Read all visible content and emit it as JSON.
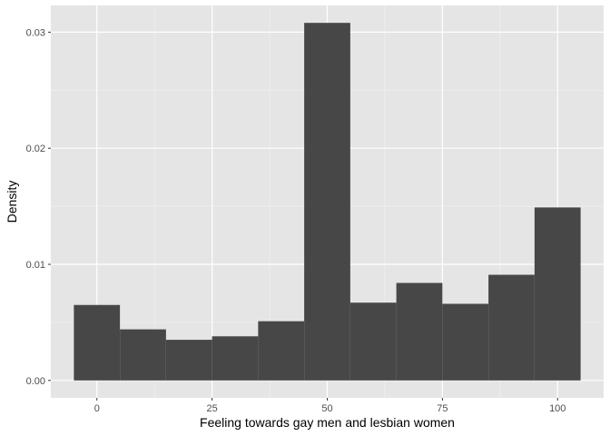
{
  "chart_data": {
    "type": "bar",
    "subtype": "histogram",
    "title": "",
    "xlabel": "Feeling towards gay men and lesbian women",
    "ylabel": "Density",
    "bin_width": 10,
    "bins": [
      {
        "x_start": -5,
        "x_end": 5,
        "density": 0.0065
      },
      {
        "x_start": 5,
        "x_end": 15,
        "density": 0.0044
      },
      {
        "x_start": 15,
        "x_end": 25,
        "density": 0.0035
      },
      {
        "x_start": 25,
        "x_end": 35,
        "density": 0.0038
      },
      {
        "x_start": 35,
        "x_end": 45,
        "density": 0.0051
      },
      {
        "x_start": 45,
        "x_end": 55,
        "density": 0.0308
      },
      {
        "x_start": 55,
        "x_end": 65,
        "density": 0.0067
      },
      {
        "x_start": 65,
        "x_end": 75,
        "density": 0.0084
      },
      {
        "x_start": 75,
        "x_end": 85,
        "density": 0.0066
      },
      {
        "x_start": 85,
        "x_end": 95,
        "density": 0.0091
      },
      {
        "x_start": 95,
        "x_end": 105,
        "density": 0.0149
      }
    ],
    "xlim": [
      -10,
      110
    ],
    "ylim": [
      -0.0015,
      0.0323
    ],
    "x_ticks": [
      0,
      25,
      50,
      75,
      100
    ],
    "x_tick_labels": [
      "0",
      "25",
      "50",
      "75",
      "100"
    ],
    "y_ticks": [
      0,
      0.01,
      0.02,
      0.03
    ],
    "y_tick_labels": [
      "0.00",
      "0.01",
      "0.02",
      "0.03"
    ],
    "grid": true,
    "legend": "none",
    "colors": {
      "bar_fill": "#474747",
      "panel_background": "#e5e5e5",
      "grid_major": "#ffffff",
      "grid_minor": "#f2f2f2",
      "tick_text": "#4d4d4d",
      "axis_title": "#000000"
    }
  }
}
